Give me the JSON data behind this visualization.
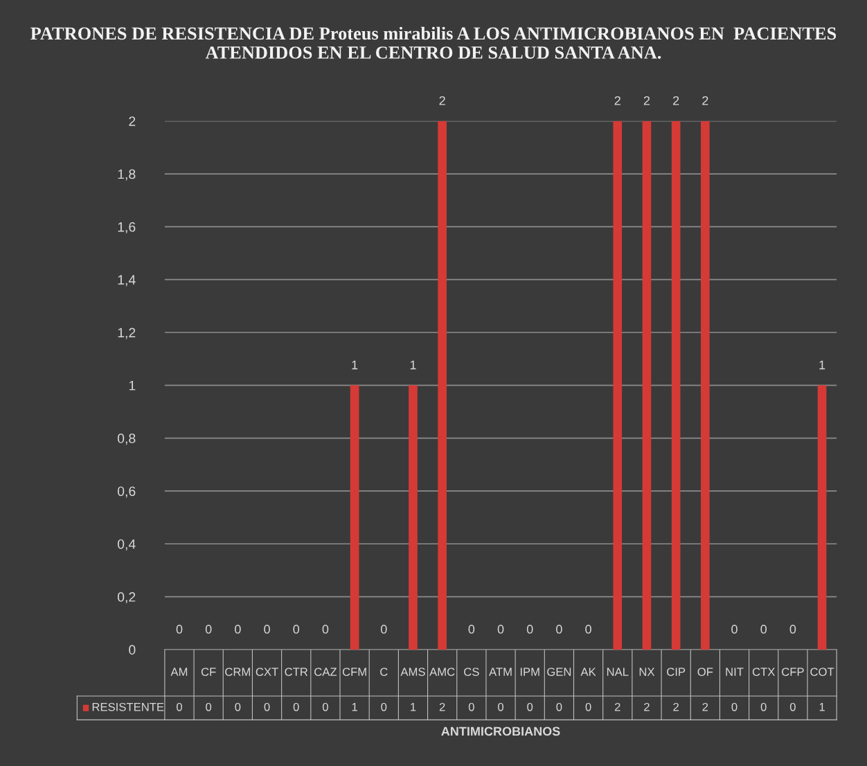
{
  "chart_data": {
    "type": "bar",
    "title": "PATRONES DE RESISTENCIA DE Proteus mirabilis A LOS ANTIMICROBIANOS EN  PACIENTES ATENDIDOS EN EL CENTRO DE SALUD SANTA ANA.",
    "xlabel": "ANTIMICROBIANOS",
    "categories": [
      "AM",
      "CF",
      "CRM",
      "CXT",
      "CTR",
      "CAZ",
      "CFM",
      "C",
      "AMS",
      "AMC",
      "CS",
      "ATM",
      "IPM",
      "GEN",
      "AK",
      "NAL",
      "NX",
      "CIP",
      "OF",
      "NIT",
      "CTX",
      "CFP",
      "COT"
    ],
    "series": [
      {
        "name": "RESISTENTE",
        "color": "#d63a36",
        "values": [
          0,
          0,
          0,
          0,
          0,
          0,
          1,
          0,
          1,
          2,
          0,
          0,
          0,
          0,
          0,
          2,
          2,
          2,
          2,
          0,
          0,
          0,
          1
        ],
        "value_labels": [
          "0",
          "0",
          "0",
          "0",
          "0",
          "0",
          "1",
          "0",
          "1",
          "2",
          "0",
          "0",
          "0",
          "0",
          "0",
          "2",
          "2",
          "2",
          "2",
          "0",
          "0",
          "0",
          "1"
        ]
      }
    ],
    "ylim": [
      0,
      2
    ],
    "yticks": [
      0,
      {
        "value": 0.2,
        "label": "0,2"
      },
      {
        "value": 0.4,
        "label": "0,4"
      },
      {
        "value": 0.6,
        "label": "0,6"
      },
      {
        "value": 0.8,
        "label": "0,8"
      },
      1,
      {
        "value": 1.2,
        "label": "1,2"
      },
      {
        "value": 1.4,
        "label": "1,4"
      },
      {
        "value": 1.6,
        "label": "1,6"
      },
      {
        "value": 1.8,
        "label": "1,8"
      },
      2
    ],
    "annotations": [
      "0",
      "0",
      "0",
      "0",
      "0",
      "0",
      "1",
      "0",
      "1",
      "2",
      "0",
      "0",
      "0",
      "0",
      "0",
      "2",
      "2",
      "2",
      "2",
      "0",
      "0",
      "0",
      "1"
    ],
    "grid": "y",
    "legend": "bottom"
  }
}
